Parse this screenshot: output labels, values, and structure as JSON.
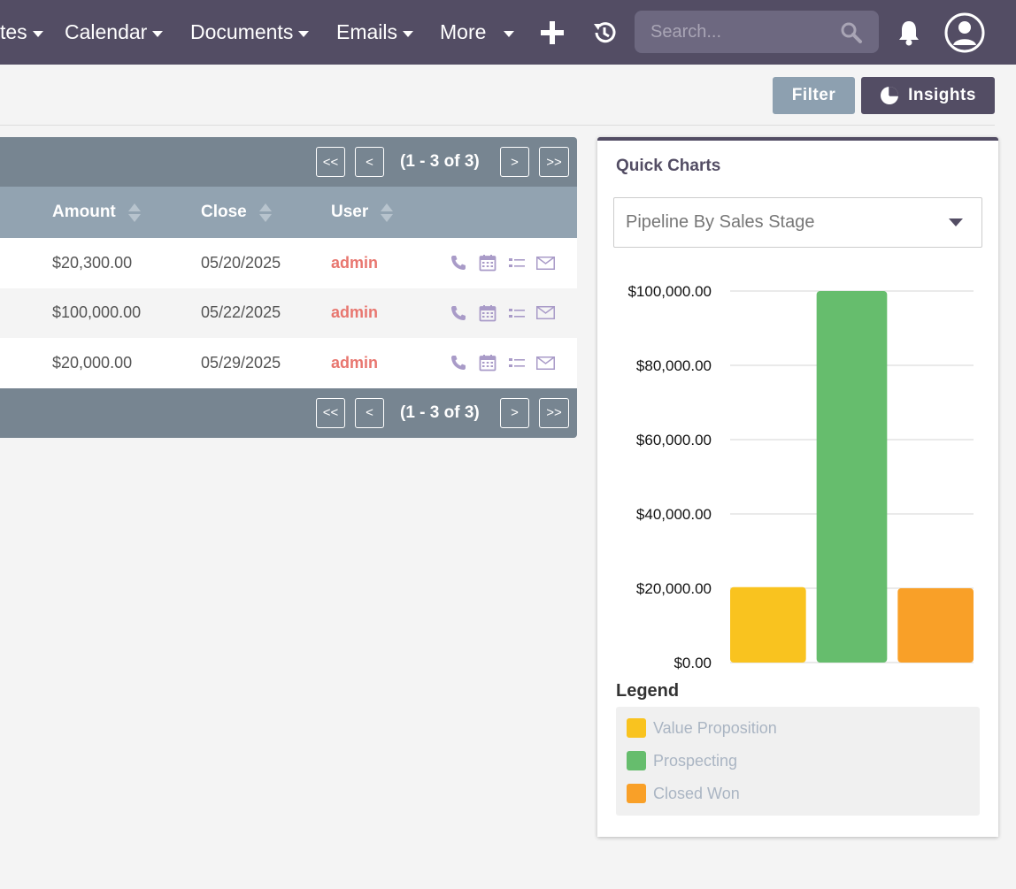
{
  "nav": {
    "items": [
      {
        "label": "tes",
        "caret": true
      },
      {
        "label": "Calendar",
        "caret": true
      },
      {
        "label": "Documents",
        "caret": true
      },
      {
        "label": "Emails",
        "caret": true
      },
      {
        "label": "More",
        "caret": true
      }
    ],
    "search_placeholder": "Search...",
    "icons": [
      "plus-icon",
      "history-icon",
      "search-icon",
      "bell-icon",
      "user-avatar-icon"
    ]
  },
  "actions": {
    "filter_label": "Filter",
    "insights_label": "Insights"
  },
  "list": {
    "pagination": {
      "first": "<<",
      "prev": "<",
      "count": "(1 - 3 of 3)",
      "next": ">",
      "last": ">>"
    },
    "columns": [
      "Amount",
      "Close",
      "User"
    ],
    "rows": [
      {
        "amount": "$20,300.00",
        "close": "05/20/2025",
        "user": "admin"
      },
      {
        "amount": "$100,000.00",
        "close": "05/22/2025",
        "user": "admin"
      },
      {
        "amount": "$20,000.00",
        "close": "05/29/2025",
        "user": "admin"
      }
    ],
    "row_icons": [
      "phone-icon",
      "calendar-icon",
      "task-list-icon",
      "email-icon"
    ]
  },
  "quick_charts": {
    "title": "Quick Charts",
    "selected_chart": "Pipeline By Sales Stage",
    "legend_title": "Legend"
  },
  "colors": {
    "nav_bg": "#534d64",
    "accent_user": "#e8766f",
    "value_proposition": "#f9c31f",
    "prospecting": "#66bd6d",
    "closed_won": "#f9a028"
  },
  "chart_data": {
    "type": "bar",
    "categories": [
      "Value Proposition",
      "Prospecting",
      "Closed Won"
    ],
    "values": [
      20300,
      100000,
      20000
    ],
    "colors": [
      "#f9c31f",
      "#66bd6d",
      "#f9a028"
    ],
    "yticks": [
      "$0.00",
      "$20,000.00",
      "$40,000.00",
      "$60,000.00",
      "$80,000.00",
      "$100,000.00"
    ],
    "ylim": [
      0,
      100000
    ],
    "grid": true,
    "legend": "below"
  }
}
